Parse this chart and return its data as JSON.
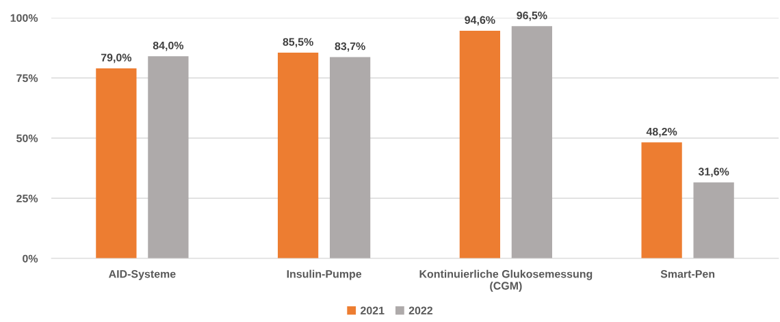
{
  "chart_data": {
    "type": "bar",
    "categories": [
      "AID-Systeme",
      "Insulin-Pumpe",
      "Kontinuierliche Glukosemessung\n(CGM)",
      "Smart-Pen"
    ],
    "series": [
      {
        "name": "2021",
        "color": "#ed7d31",
        "values": [
          79.0,
          85.5,
          94.6,
          48.2
        ],
        "value_labels": [
          "79,0%",
          "85,5%",
          "94,6%",
          "48,2%"
        ]
      },
      {
        "name": "2022",
        "color": "#aeaaaa",
        "values": [
          84.0,
          83.7,
          96.5,
          31.6
        ],
        "value_labels": [
          "84,0%",
          "83,7%",
          "96,5%",
          "31,6%"
        ]
      }
    ],
    "ylim": [
      0,
      100
    ],
    "yticks": [
      {
        "value": 0,
        "label": "0%"
      },
      {
        "value": 25,
        "label": "25%"
      },
      {
        "value": 50,
        "label": "50%"
      },
      {
        "value": 75,
        "label": "75%"
      },
      {
        "value": 100,
        "label": "100%"
      }
    ],
    "grid": "y",
    "legend": "bottom"
  }
}
